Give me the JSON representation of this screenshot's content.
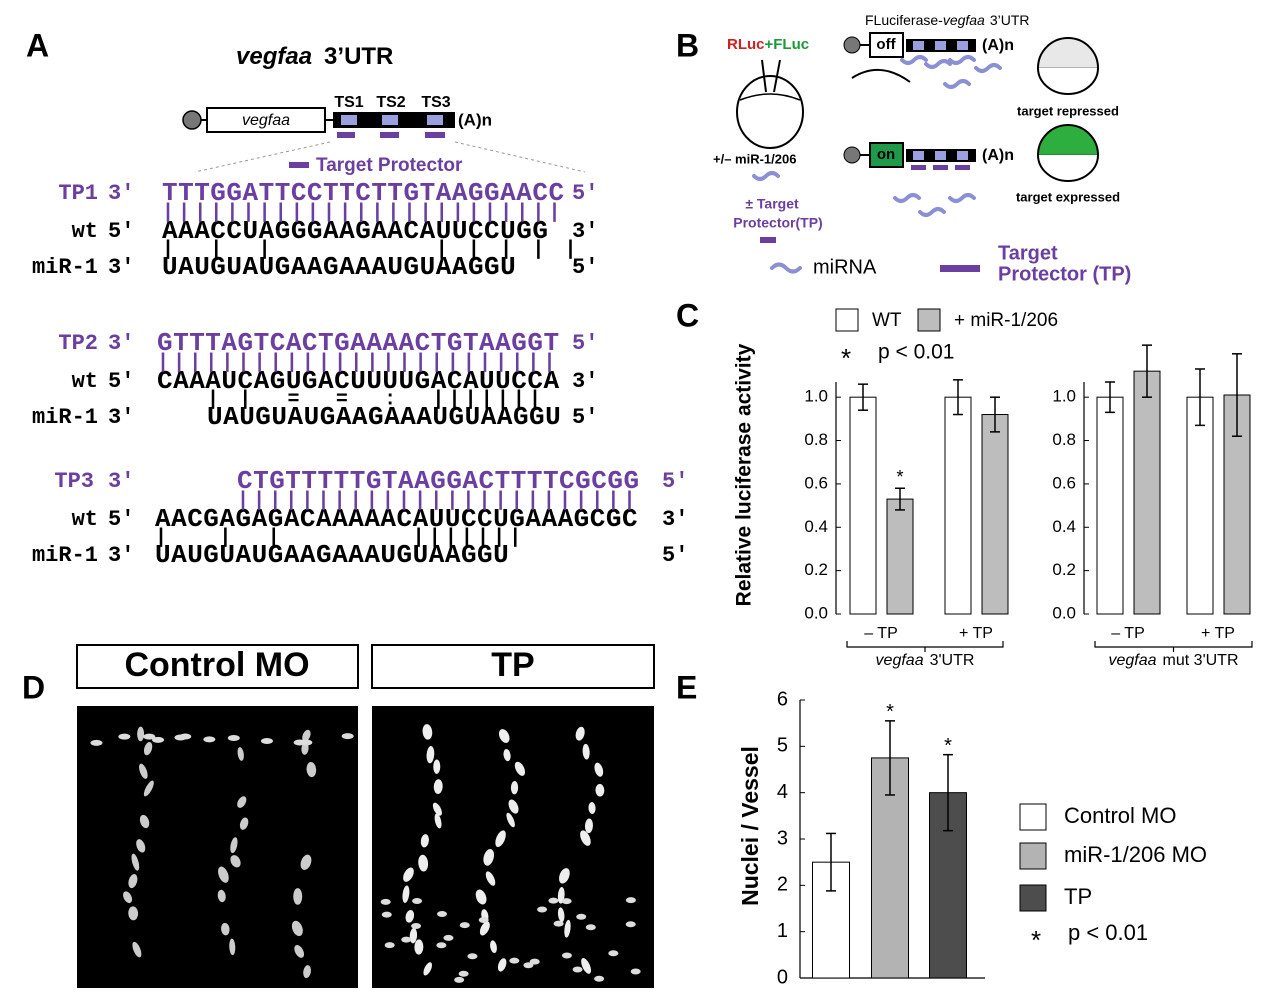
{
  "panel_a": {
    "label": "A",
    "title_gene": "vegfaa",
    "title_rest": "3’UTR",
    "gene": "vegfaa",
    "sites": [
      "TS1",
      "TS2",
      "TS3"
    ],
    "polya": "(A)n",
    "legend": "Target Protector",
    "alignments": [
      {
        "rows": [
          {
            "name": "TP1",
            "start": "3'",
            "seq": "TTTGGATTCCTTCTTGTAAGGAACC",
            "end": "5'"
          },
          {
            "name": "wt",
            "start": "5'",
            "seq": "AAACCUAGGGAAGAACAUUCCUGG",
            "end": "3'"
          },
          {
            "name": "miR-1",
            "start": "3'",
            "seq": "UAUGUAUGAAGAAAUGUAAGGU",
            "end": "5'"
          }
        ],
        "pairs": [
          "|||||||||||||||||||||||||",
          "|  |  |          | | | | |"
        ]
      },
      {
        "rows": [
          {
            "name": "TP2",
            "start": "3'",
            "seq": "GTTTAGTCACTGAAAACTGTAAGGT",
            "end": "5'"
          },
          {
            "name": "wt",
            "start": "5'",
            "seq": "CAAAUCAGUGACUUUUGACAUUCCA",
            "end": "3'"
          },
          {
            "name": "miR-1",
            "start": "3'",
            "seq": "UAUGUAUGAAGAAAUGUAAGGU",
            "end": "5'"
          }
        ],
        "pairs": [
          "|||||||||||||||||||||||||",
          "| |  =  =  :  |||||||"
        ]
      },
      {
        "rows": [
          {
            "name": "TP3",
            "start": "3'",
            "seq": "CTGTTTTTGTAAGGACTTTTCGCGG",
            "end": "5'"
          },
          {
            "name": "wt",
            "start": "5'",
            "seq": "AACGAGAGACAAAAACAUUCCUGAAAGCGC",
            "end": "3'"
          },
          {
            "name": "miR-1",
            "start": "3'",
            "seq": "UAUGUAUGAAGAAAUGUAAGGU",
            "end": "5'"
          }
        ],
        "pairs": [
          "|||||||||||||||||||||||||",
          "|   |  |        |||||||"
        ]
      }
    ]
  },
  "panel_b": {
    "label": "B",
    "rluc": "RLuc",
    "plus": "+",
    "fluc": "FLuc",
    "construct": "FLuciferase-",
    "construct_gene": "vegfaa",
    "construct_rest": "3’UTR",
    "off": "off",
    "on": "on",
    "polya": [
      "(A)n",
      "(A)n"
    ],
    "repressed": "target repressed",
    "expressed": "target expressed",
    "mirna_injection": "+/– miR-1/206",
    "tp_injection": [
      "± Target",
      "Protector(TP)"
    ],
    "legend_mirna": "miRNA",
    "legend_tp": [
      "Target",
      "Protector (TP)"
    ]
  },
  "panel_d": {
    "label": "D",
    "conditions": [
      "Control MO",
      "TP"
    ]
  },
  "chart_data": [
    {
      "type": "bar",
      "panel_label": "C",
      "ylabel": "Relative luciferase activity",
      "ylim": [
        0,
        1.07
      ],
      "yticks": [
        {
          "value": 0,
          "label": "0.0"
        },
        {
          "value": 0.2,
          "label": "0.2"
        },
        {
          "value": 0.4,
          "label": "0.4"
        },
        {
          "value": 0.6,
          "label": "0.6"
        },
        {
          "value": 0.8,
          "label": "0.8"
        },
        {
          "value": 1,
          "label": "1.0"
        }
      ],
      "categories": [
        "– TP",
        "+ TP",
        "– TP",
        "+ TP"
      ],
      "groups": [
        {
          "gene": "vegfaa",
          "label": "3'UTR"
        },
        {
          "gene": "vegfaa",
          "label": "mut 3'UTR"
        }
      ],
      "series": [
        {
          "name": "WT",
          "color": "#ffffff",
          "values": [
            1.0,
            1.0,
            1.0,
            1.0
          ],
          "errors": [
            0.06,
            0.08,
            0.07,
            0.13
          ],
          "significance_marks": [
            null,
            null,
            null,
            null
          ]
        },
        {
          "name": "+ miR-1/206",
          "color": "#bdbdbd",
          "values": [
            0.53,
            0.92,
            1.12,
            1.01
          ],
          "errors": [
            0.05,
            0.08,
            0.12,
            0.19
          ],
          "significance_marks": [
            "*",
            null,
            null,
            null
          ]
        }
      ],
      "significance": {
        "symbol": "*",
        "label": "p < 0.01"
      }
    },
    {
      "type": "bar",
      "panel_label": "E",
      "ylabel": "Nuclei / Vessel",
      "ylim": [
        0,
        6
      ],
      "yticks": [
        0,
        1,
        2,
        3,
        4,
        5,
        6
      ],
      "categories": [
        "Control MO",
        "miR-1/206 MO",
        "TP"
      ],
      "colors": [
        "#ffffff",
        "#b3b3b3",
        "#4d4d4d"
      ],
      "values": [
        2.5,
        4.75,
        4.0
      ],
      "errors": [
        0.62,
        0.8,
        0.82
      ],
      "significance_marks": [
        null,
        "*",
        "*"
      ],
      "significance": {
        "symbol": "*",
        "label": "p < 0.01"
      }
    }
  ]
}
